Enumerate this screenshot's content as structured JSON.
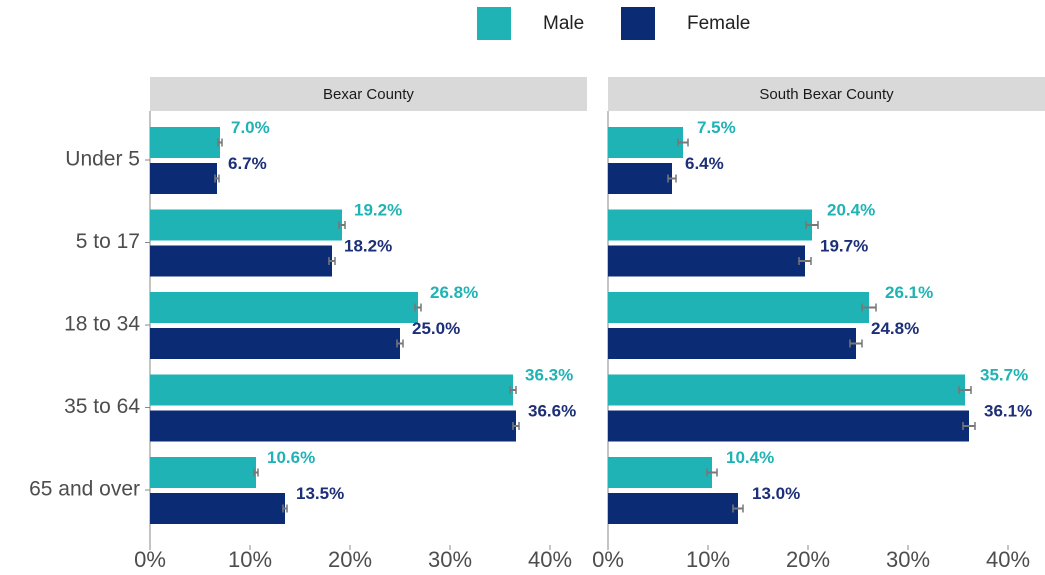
{
  "chart_data": [
    {
      "type": "bar",
      "title": "Bexar County",
      "categories": [
        "Under 5",
        "5 to 17",
        "18 to 34",
        "35 to 64",
        "65 and over"
      ],
      "series": [
        {
          "name": "Male",
          "color": "#1fb3b5",
          "values": [
            7.0,
            19.2,
            26.8,
            36.3,
            10.6
          ],
          "value_labels": [
            "7.0%",
            "19.2%",
            "26.8%",
            "36.3%",
            "10.6%"
          ],
          "errors": [
            0.2,
            0.3,
            0.3,
            0.3,
            0.2
          ]
        },
        {
          "name": "Female",
          "color": "#0b2c75",
          "values": [
            6.7,
            18.2,
            25.0,
            36.6,
            13.5
          ],
          "value_labels": [
            "6.7%",
            "18.2%",
            "25.0%",
            "36.6%",
            "13.5%"
          ],
          "errors": [
            0.2,
            0.3,
            0.3,
            0.3,
            0.2
          ]
        }
      ],
      "xlim": [
        0,
        43.7
      ],
      "xticks": [
        {
          "value": 0,
          "label": "0%"
        },
        {
          "value": 10,
          "label": "10%"
        },
        {
          "value": 20,
          "label": "20%"
        },
        {
          "value": 30,
          "label": "30%"
        },
        {
          "value": 40,
          "label": "40%"
        }
      ]
    },
    {
      "type": "bar",
      "title": "South Bexar County",
      "series": [
        {
          "name": "Male",
          "color": "#1fb3b5",
          "values": [
            7.5,
            20.4,
            26.1,
            35.7,
            10.4
          ],
          "value_labels": [
            "7.5%",
            "20.4%",
            "26.1%",
            "35.7%",
            "10.4%"
          ],
          "errors": [
            0.5,
            0.6,
            0.7,
            0.6,
            0.5
          ]
        },
        {
          "name": "Female",
          "color": "#0b2c75",
          "values": [
            6.4,
            19.7,
            24.8,
            36.1,
            13.0
          ],
          "value_labels": [
            "6.4%",
            "19.7%",
            "24.8%",
            "36.1%",
            "13.0%"
          ],
          "errors": [
            0.4,
            0.6,
            0.6,
            0.6,
            0.5
          ]
        }
      ],
      "xlim": [
        0,
        43.7
      ],
      "xticks": [
        {
          "value": 0,
          "label": "0%"
        },
        {
          "value": 10,
          "label": "10%"
        },
        {
          "value": 20,
          "label": "20%"
        },
        {
          "value": 30,
          "label": "30%"
        },
        {
          "value": 40,
          "label": "40%"
        }
      ]
    }
  ]
}
